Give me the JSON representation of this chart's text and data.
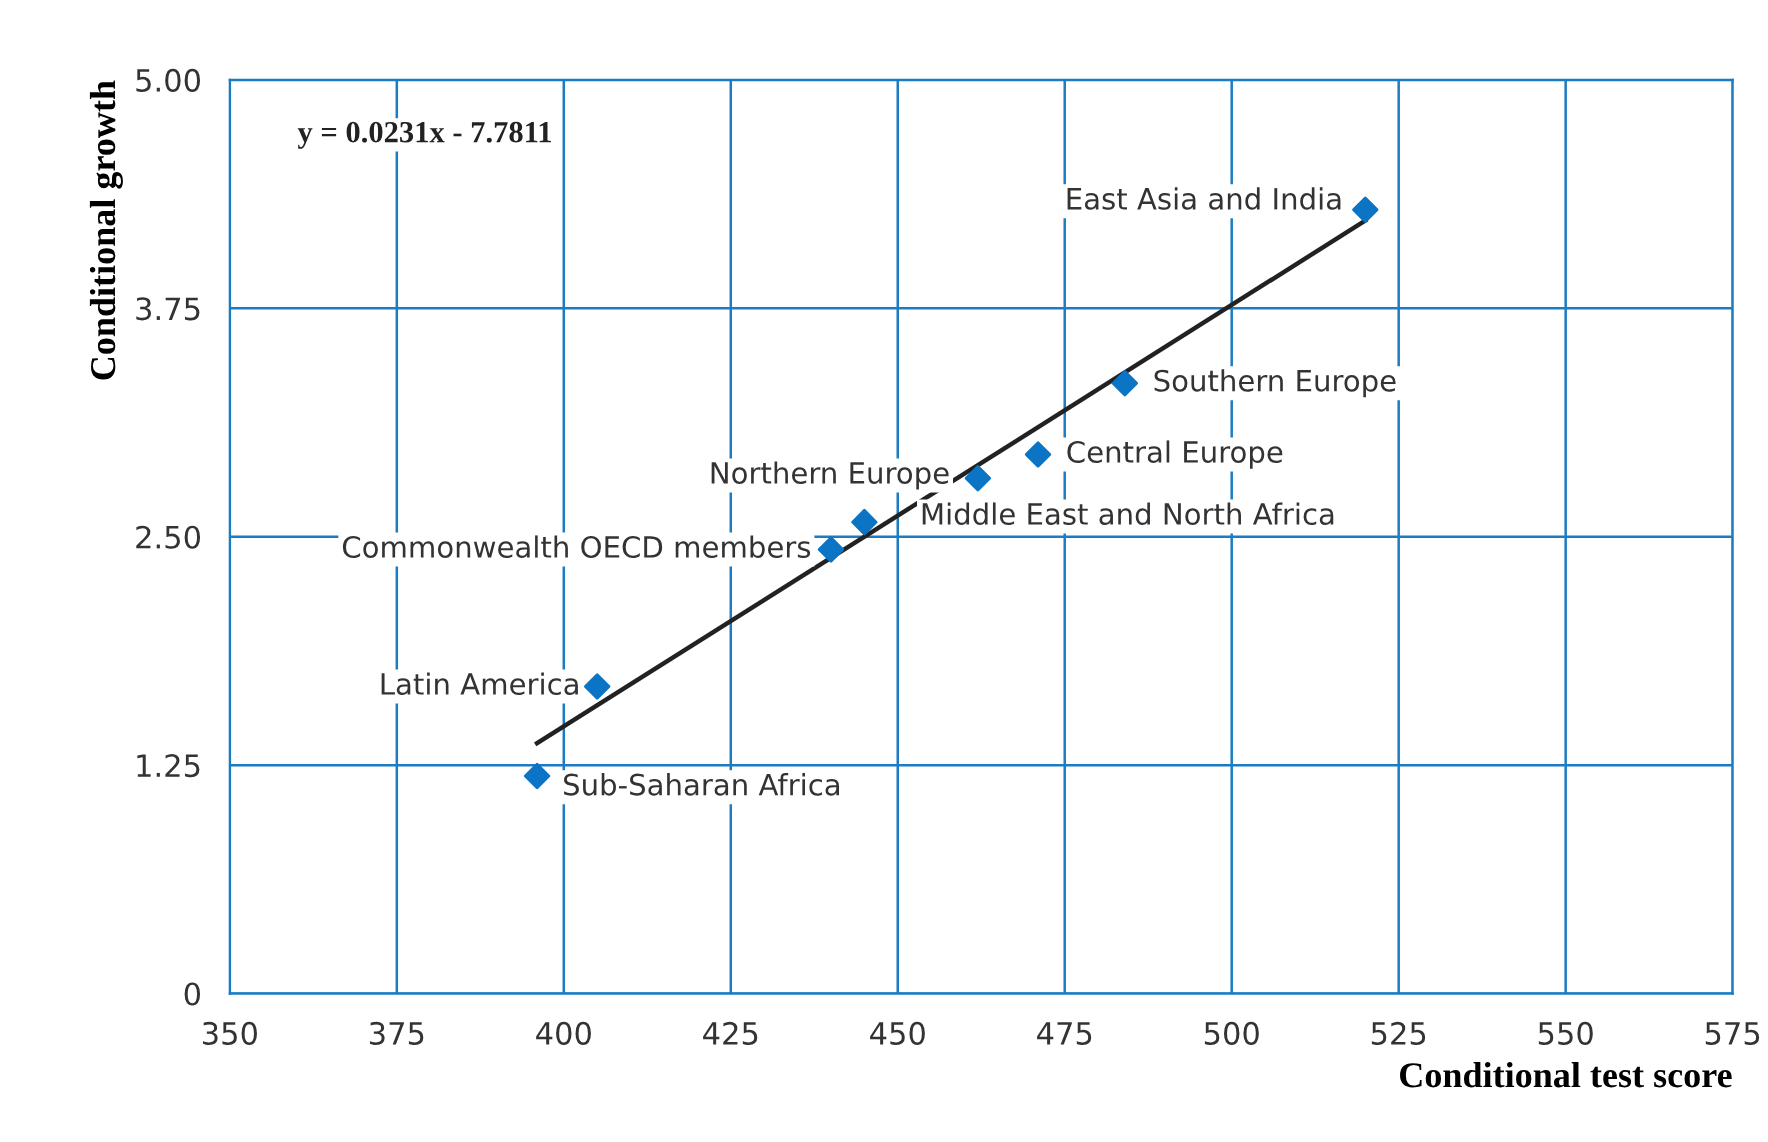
{
  "chart_data": {
    "type": "scatter",
    "xlabel": "Conditional test score",
    "ylabel": "Conditional growth",
    "xlim": [
      350,
      575
    ],
    "xticks": [
      350,
      375,
      400,
      425,
      450,
      475,
      500,
      525,
      550,
      575
    ],
    "ylim": [
      0,
      5
    ],
    "yticks": [
      0,
      {
        "value": 1.25,
        "label": "1.25"
      },
      {
        "value": 2.5,
        "label": "2.50"
      },
      {
        "value": 3.75,
        "label": "3.75"
      },
      {
        "value": 5,
        "label": "5.00"
      }
    ],
    "grid": true,
    "legend": false,
    "series": [
      {
        "marker": "diamond",
        "color": "#0b74c4",
        "x": [
          520,
          484,
          471,
          462,
          445,
          440,
          405,
          396
        ],
        "values": [
          4.29,
          3.34,
          2.95,
          2.82,
          2.58,
          2.43,
          1.68,
          1.19
        ]
      },
      {
        "type": "line",
        "marker": "none",
        "color": "#222222",
        "x": [
          396,
          520
        ],
        "values": [
          1.37,
          4.23
        ]
      }
    ],
    "annotations": [
      "y = 0.0231x - 7.7811",
      {
        "text": "East Asia and India",
        "x": 520,
        "y": 4.29
      },
      {
        "text": "Southern Europe",
        "x": 484,
        "y": 3.34
      },
      {
        "text": "Central Europe",
        "x": 471,
        "y": 2.95
      },
      {
        "text": "Northern Europe",
        "x": 462,
        "y": 2.82
      },
      {
        "text": "Middle East and North Africa",
        "x": 445,
        "y": 2.58
      },
      {
        "text": "Commonwealth OECD members",
        "x": 440,
        "y": 2.43
      },
      {
        "text": "Latin America",
        "x": 405,
        "y": 1.68
      },
      {
        "text": "Sub-Saharan Africa",
        "x": 396,
        "y": 1.19
      }
    ]
  }
}
